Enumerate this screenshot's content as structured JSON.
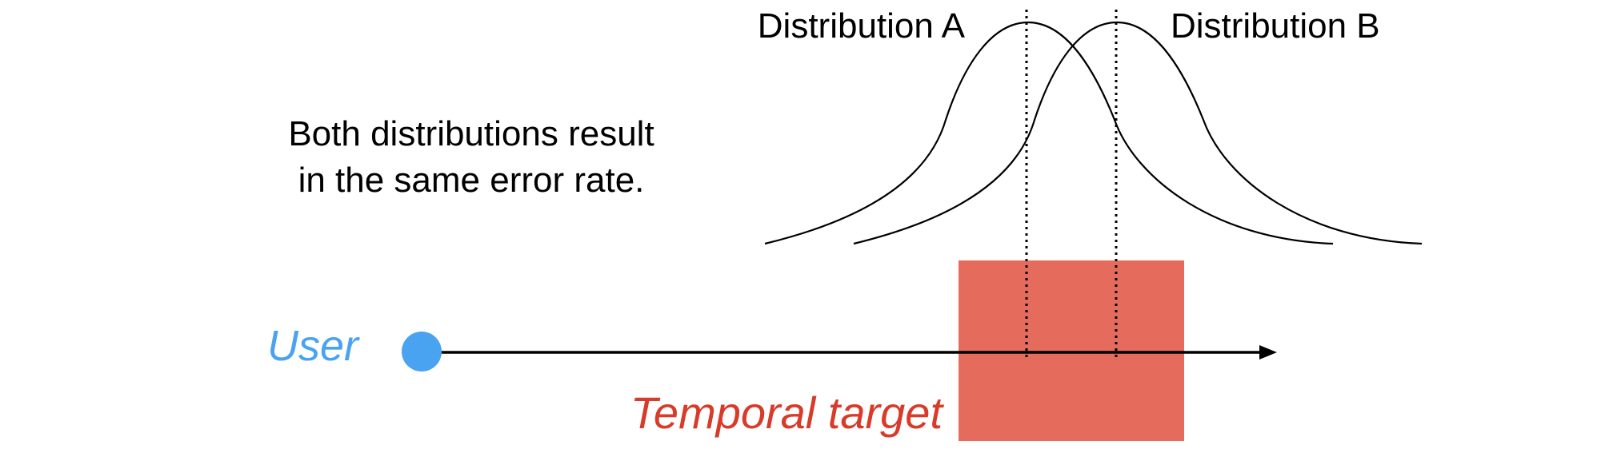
{
  "labels": {
    "distribution_a": "Distribution A",
    "distribution_b": "Distribution B",
    "note_line1": "Both distributions result",
    "note_line2": "in the same error rate.",
    "user": "User",
    "temporal_target": "Temporal target"
  },
  "colors": {
    "user": "#4aa3f0",
    "target_fill": "#e56b5d",
    "target_label": "#d93b2b",
    "ink": "#000000"
  }
}
